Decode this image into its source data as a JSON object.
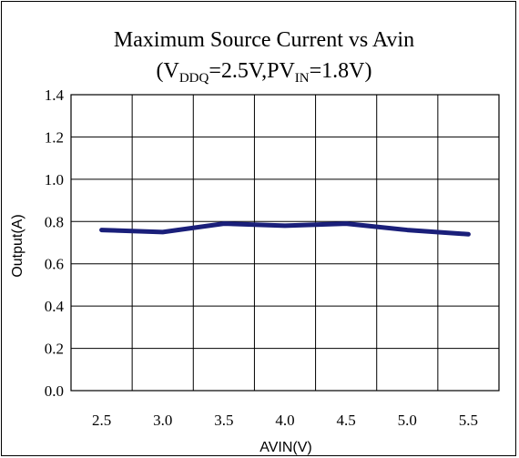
{
  "chart_data": {
    "type": "line",
    "title": "Maximum Source Current vs Avin",
    "subtitle": {
      "parts": [
        {
          "text": "(V",
          "sub": false
        },
        {
          "text": "DDQ",
          "sub": true
        },
        {
          "text": "=2.5V,PV",
          "sub": false
        },
        {
          "text": "IN",
          "sub": true
        },
        {
          "text": "=1.8V)",
          "sub": false
        }
      ]
    },
    "xlabel": "AVIN(V)",
    "ylabel": "Output(A)",
    "x": [
      2.5,
      3.0,
      3.5,
      4.0,
      4.5,
      5.0,
      5.5
    ],
    "x_tick_labels": [
      "2.5",
      "3.0",
      "3.5",
      "4.0",
      "4.5",
      "5.0",
      "5.5"
    ],
    "y_ticks": [
      0.0,
      0.2,
      0.4,
      0.6,
      0.8,
      1.0,
      1.2,
      1.4
    ],
    "y_tick_labels": [
      "0.0",
      "0.2",
      "0.4",
      "0.6",
      "0.8",
      "1.0",
      "1.2",
      "1.4"
    ],
    "ylim": [
      0.0,
      1.4
    ],
    "series": [
      {
        "values": [
          0.76,
          0.75,
          0.79,
          0.78,
          0.79,
          0.76,
          0.74
        ],
        "color": "#1a1f7a"
      }
    ],
    "grid": true,
    "legend": "none"
  }
}
